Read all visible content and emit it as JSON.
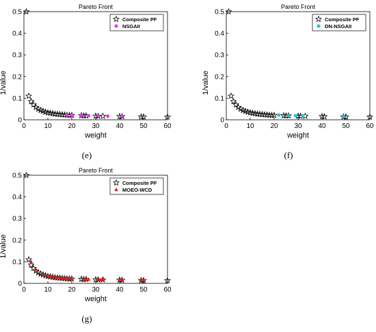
{
  "chart_data": [
    {
      "type": "scatter",
      "title": "Pareto Front",
      "xlabel": "weight",
      "ylabel": "1/value",
      "xlim": [
        0,
        60
      ],
      "ylim": [
        0,
        0.5
      ],
      "xticks": [
        "0",
        "10",
        "20",
        "30",
        "40",
        "50",
        "60"
      ],
      "yticks": [
        "0",
        "0.1",
        "0.2",
        "0.3",
        "0.4",
        "0.5"
      ],
      "grid": false,
      "legend": "top-right",
      "caption": "(e)",
      "series": [
        {
          "name": "Composite PF",
          "marker": "star",
          "color": "#000000",
          "points": [
            [
              1,
              0.5
            ],
            [
              2,
              0.11
            ],
            [
              3,
              0.085
            ],
            [
              4,
              0.07
            ],
            [
              5,
              0.058
            ],
            [
              6,
              0.05
            ],
            [
              7,
              0.044
            ],
            [
              8,
              0.04
            ],
            [
              9,
              0.036
            ],
            [
              10,
              0.033
            ],
            [
              11,
              0.031
            ],
            [
              12,
              0.029
            ],
            [
              13,
              0.027
            ],
            [
              14,
              0.026
            ],
            [
              15,
              0.025
            ],
            [
              16,
              0.024
            ],
            [
              17,
              0.023
            ],
            [
              18,
              0.022
            ],
            [
              19,
              0.021
            ],
            [
              20,
              0.021
            ],
            [
              24,
              0.02
            ],
            [
              25,
              0.019
            ],
            [
              26,
              0.019
            ],
            [
              30,
              0.018
            ],
            [
              31,
              0.017
            ],
            [
              33,
              0.017
            ],
            [
              40,
              0.016
            ],
            [
              41,
              0.015
            ],
            [
              49,
              0.014
            ],
            [
              50,
              0.014
            ],
            [
              60,
              0.013
            ]
          ]
        },
        {
          "name": "NSGAII",
          "marker": "circle",
          "color": "#e833e8",
          "points": [
            [
              18,
              0.022
            ],
            [
              20,
              0.021
            ],
            [
              24,
              0.02
            ],
            [
              27,
              0.019
            ],
            [
              31,
              0.018
            ],
            [
              35,
              0.017
            ],
            [
              41,
              0.016
            ]
          ]
        }
      ]
    },
    {
      "type": "scatter",
      "title": "Pareto Front",
      "xlabel": "weight",
      "ylabel": "1/value",
      "xlim": [
        0,
        60
      ],
      "ylim": [
        0,
        0.5
      ],
      "xticks": [
        "0",
        "10",
        "20",
        "30",
        "40",
        "50",
        "60"
      ],
      "yticks": [
        "0",
        "0.1",
        "0.2",
        "0.3",
        "0.4",
        "0.5"
      ],
      "grid": false,
      "legend": "top-right",
      "caption": "(f)",
      "series": [
        {
          "name": "Composite PF",
          "marker": "star",
          "color": "#000000",
          "points": [
            [
              1,
              0.5
            ],
            [
              2,
              0.11
            ],
            [
              3,
              0.085
            ],
            [
              4,
              0.07
            ],
            [
              5,
              0.058
            ],
            [
              6,
              0.05
            ],
            [
              7,
              0.044
            ],
            [
              8,
              0.04
            ],
            [
              9,
              0.036
            ],
            [
              10,
              0.033
            ],
            [
              11,
              0.031
            ],
            [
              12,
              0.029
            ],
            [
              13,
              0.027
            ],
            [
              14,
              0.026
            ],
            [
              15,
              0.025
            ],
            [
              16,
              0.024
            ],
            [
              17,
              0.023
            ],
            [
              18,
              0.022
            ],
            [
              19,
              0.021
            ],
            [
              20,
              0.021
            ],
            [
              24,
              0.02
            ],
            [
              25,
              0.019
            ],
            [
              26,
              0.019
            ],
            [
              30,
              0.018
            ],
            [
              31,
              0.017
            ],
            [
              33,
              0.017
            ],
            [
              40,
              0.016
            ],
            [
              41,
              0.015
            ],
            [
              49,
              0.014
            ],
            [
              50,
              0.014
            ],
            [
              60,
              0.013
            ]
          ]
        },
        {
          "name": "DN-NSGAII",
          "marker": "square",
          "color": "#2bbfd6",
          "points": [
            [
              22,
              0.022
            ],
            [
              26,
              0.02
            ],
            [
              29,
              0.019
            ],
            [
              32,
              0.018
            ],
            [
              49,
              0.016
            ]
          ]
        }
      ]
    },
    {
      "type": "scatter",
      "title": "Pareto Front",
      "xlabel": "weight",
      "ylabel": "1/value",
      "xlim": [
        0,
        60
      ],
      "ylim": [
        0,
        0.5
      ],
      "xticks": [
        "0",
        "10",
        "20",
        "30",
        "40",
        "50",
        "60"
      ],
      "yticks": [
        "0",
        "0.1",
        "0.2",
        "0.3",
        "0.4",
        "0.5"
      ],
      "grid": false,
      "legend": "top-right",
      "caption": "(g)",
      "series": [
        {
          "name": "Composite PF",
          "marker": "star",
          "color": "#000000",
          "points": [
            [
              1,
              0.5
            ],
            [
              2,
              0.11
            ],
            [
              3,
              0.085
            ],
            [
              4,
              0.07
            ],
            [
              5,
              0.058
            ],
            [
              6,
              0.05
            ],
            [
              7,
              0.044
            ],
            [
              8,
              0.04
            ],
            [
              9,
              0.036
            ],
            [
              10,
              0.033
            ],
            [
              11,
              0.031
            ],
            [
              12,
              0.029
            ],
            [
              13,
              0.027
            ],
            [
              14,
              0.026
            ],
            [
              15,
              0.025
            ],
            [
              16,
              0.024
            ],
            [
              17,
              0.023
            ],
            [
              18,
              0.022
            ],
            [
              19,
              0.021
            ],
            [
              20,
              0.021
            ],
            [
              24,
              0.02
            ],
            [
              25,
              0.019
            ],
            [
              26,
              0.019
            ],
            [
              30,
              0.018
            ],
            [
              31,
              0.017
            ],
            [
              33,
              0.017
            ],
            [
              40,
              0.016
            ],
            [
              41,
              0.015
            ],
            [
              49,
              0.014
            ],
            [
              50,
              0.014
            ],
            [
              60,
              0.013
            ]
          ]
        },
        {
          "name": "MOEO-WCD",
          "marker": "triangle",
          "color": "#d62020",
          "points": [
            [
              3,
              0.1
            ],
            [
              5,
              0.065
            ],
            [
              8,
              0.04
            ],
            [
              10,
              0.035
            ],
            [
              11,
              0.032
            ],
            [
              12,
              0.03
            ],
            [
              13,
              0.028
            ],
            [
              14,
              0.026
            ],
            [
              15,
              0.025
            ],
            [
              16,
              0.024
            ],
            [
              17,
              0.023
            ],
            [
              18,
              0.022
            ],
            [
              19,
              0.022
            ],
            [
              20,
              0.021
            ],
            [
              25,
              0.02
            ],
            [
              26,
              0.019
            ],
            [
              27,
              0.019
            ],
            [
              31,
              0.018
            ],
            [
              32,
              0.017
            ],
            [
              33,
              0.017
            ],
            [
              40,
              0.016
            ],
            [
              41,
              0.016
            ],
            [
              49,
              0.015
            ],
            [
              50,
              0.015
            ]
          ]
        }
      ]
    }
  ]
}
